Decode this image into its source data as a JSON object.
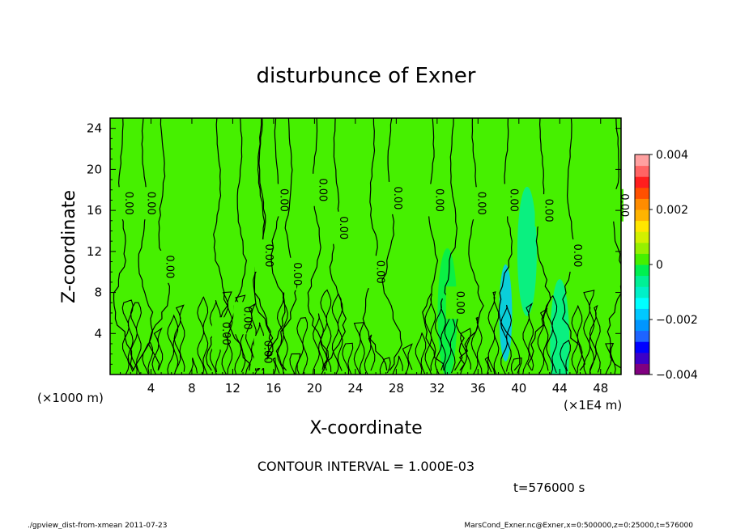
{
  "chart_data": {
    "type": "heatmap",
    "title": "disturbunce of Exner",
    "xlabel": "X-coordinate",
    "ylabel": "Z-coordinate",
    "x_unit_left": "(×1000 m)",
    "x_unit_right": "(×1E4 m)",
    "xlim": [
      0,
      50
    ],
    "ylim": [
      0,
      25
    ],
    "x_ticks": [
      "4",
      "8",
      "12",
      "16",
      "20",
      "24",
      "28",
      "32",
      "36",
      "40",
      "44",
      "48"
    ],
    "x_tick_values": [
      4,
      8,
      12,
      16,
      20,
      24,
      28,
      32,
      36,
      40,
      44,
      48
    ],
    "y_ticks": [
      "4",
      "8",
      "12",
      "16",
      "20",
      "24"
    ],
    "y_tick_values": [
      4,
      8,
      12,
      16,
      20,
      24
    ],
    "contour_interval": "CONTOUR INTERVAL = 1.000E-03",
    "time_label": "t=576000 s",
    "colorbar": {
      "range": [
        -0.004,
        0.004
      ],
      "labels": [
        "0.004",
        "0.002",
        "0",
        "−0.002",
        "−0.004"
      ],
      "label_values": [
        0.004,
        0.002,
        0,
        -0.002,
        -0.004
      ],
      "colors": [
        "#800080",
        "#3c00c8",
        "#0000ff",
        "#1e64ff",
        "#0096ff",
        "#00c8ff",
        "#00ffff",
        "#00f0c8",
        "#00f096",
        "#00f050",
        "#46f000",
        "#96f000",
        "#d2f000",
        "#ffe600",
        "#ffb400",
        "#ff8c00",
        "#ff5000",
        "#ff1e1e",
        "#ff6464",
        "#ffa0a0"
      ]
    },
    "background_color": "#46f000",
    "contour_labels": [
      {
        "text": "0.00",
        "x": 1.1,
        "z": 16.7
      },
      {
        "text": "0.00",
        "x": 3.3,
        "z": 16.7
      },
      {
        "text": "0.00",
        "x": 5.1,
        "z": 10.5
      },
      {
        "text": "0.00",
        "x": 10.6,
        "z": 4.0
      },
      {
        "text": "0.00",
        "x": 12.7,
        "z": 5.5
      },
      {
        "text": "0.00",
        "x": 14.7,
        "z": 2.2
      },
      {
        "text": "0.00",
        "x": 14.8,
        "z": 11.6
      },
      {
        "text": "0.00",
        "x": 16.3,
        "z": 17.0
      },
      {
        "text": "0.00",
        "x": 17.6,
        "z": 9.8
      },
      {
        "text": "0.00",
        "x": 20.1,
        "z": 18.0
      },
      {
        "text": "0.00",
        "x": 22.1,
        "z": 14.3
      },
      {
        "text": "0.00",
        "x": 25.7,
        "z": 10.0
      },
      {
        "text": "0.00",
        "x": 27.4,
        "z": 17.2
      },
      {
        "text": "0.00",
        "x": 31.5,
        "z": 17.0
      },
      {
        "text": "0.00",
        "x": 33.5,
        "z": 7.0
      },
      {
        "text": "0.00",
        "x": 35.6,
        "z": 16.7
      },
      {
        "text": "0.00",
        "x": 38.8,
        "z": 17.0
      },
      {
        "text": "0.00",
        "x": 42.2,
        "z": 16.0
      },
      {
        "text": "0.00",
        "x": 45.0,
        "z": 11.6
      },
      {
        "text": "0.00",
        "x": 49.6,
        "z": 16.5
      }
    ],
    "negative_patches": [
      {
        "x": 38.7,
        "z": 6.0,
        "value": -0.0018
      },
      {
        "x": 40.8,
        "z": 12.0,
        "value": -0.0008
      },
      {
        "x": 33.0,
        "z": 6.0,
        "value": -0.0004
      },
      {
        "x": 44.0,
        "z": 3.0,
        "value": -0.0006
      }
    ]
  },
  "footer": {
    "left": "./gpview_dist-from-xmean  2011-07-23",
    "right": "MarsCond_Exner.nc@Exner,x=0:500000,z=0:25000,t=576000"
  }
}
